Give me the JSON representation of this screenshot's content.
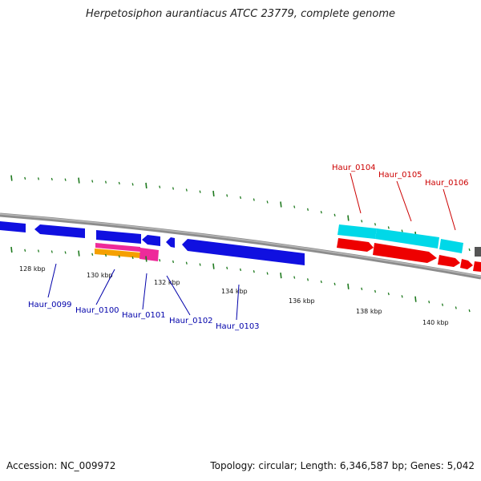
{
  "header": {
    "title": "Herpetosiphon aurantiacus ATCC 23779, complete genome"
  },
  "footer": {
    "accession": "Accession: NC_009972",
    "summary": "Topology: circular; Length: 6,346,587 bp; Genes: 5,042"
  },
  "colors": {
    "backbone": "#8c8c8c",
    "tick": "#1f7a1f",
    "forward_label": "#cc0000",
    "reverse_label": "#0000aa",
    "gene_blue": "#1010e0",
    "gene_cyan": "#00d8e8",
    "gene_red": "#ee0000",
    "gene_magenta": "#ee2a9a",
    "gene_orange": "#f5a000"
  },
  "scale_labels": [
    "128 kbp",
    "130 kbp",
    "132 kbp",
    "134 kbp",
    "136 kbp",
    "138 kbp",
    "140 kbp"
  ],
  "forward_genes": [
    "Haur_0104",
    "Haur_0105",
    "Haur_0106"
  ],
  "reverse_genes": [
    "Haur_0099",
    "Haur_0100",
    "Haur_0101",
    "Haur_0102",
    "Haur_0103"
  ]
}
